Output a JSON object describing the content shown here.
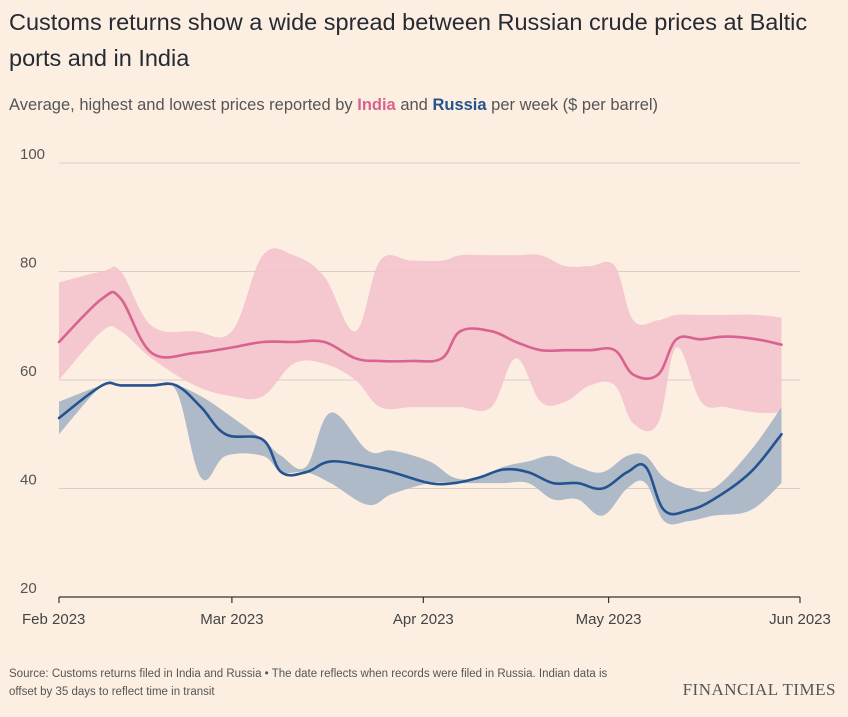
{
  "header": {
    "title": "Customs returns show a wide spread between Russian crude prices at Baltic ports and in India",
    "subtitle_prefix": "Average, highest and lowest prices reported by ",
    "subtitle_india": "India",
    "subtitle_and": " and ",
    "subtitle_russia": "Russia",
    "subtitle_suffix": " per week ($ per barrel)"
  },
  "footer": {
    "source": "Source: Customs returns filed in India and Russia • The date reflects when records were filed in Russia. Indian data is offset by 35 days to reflect time in transit",
    "brand": "FINANCIAL TIMES"
  },
  "colors": {
    "background": "#fcefe2",
    "india_line": "#d9638f",
    "india_band": "#f4c3cc",
    "russia_line": "#25538f",
    "russia_band": "#a8b5c7",
    "grid": "#d9cfc5"
  },
  "chart_data": {
    "type": "line",
    "title": "Customs returns show a wide spread between Russian crude prices at Baltic ports and in India",
    "ylabel": "$ per barrel",
    "ylim": [
      20,
      100
    ],
    "yticks": [
      20,
      40,
      60,
      80,
      100
    ],
    "xlim": [
      0,
      120
    ],
    "x_unit": "days since 1 Feb 2023",
    "xticks": [
      {
        "label": "Feb 2023",
        "value": 0
      },
      {
        "label": "Mar 2023",
        "value": 28
      },
      {
        "label": "Apr 2023",
        "value": 59
      },
      {
        "label": "May 2023",
        "value": 89
      },
      {
        "label": "Jun 2023",
        "value": 120
      }
    ],
    "series": [
      {
        "name": "India",
        "x": [
          0,
          7,
          10,
          15,
          22,
          28,
          33,
          38,
          43,
          48,
          52,
          57,
          62,
          65,
          70,
          74,
          78,
          82,
          86,
          90,
          93,
          97,
          100,
          104,
          108,
          113,
          117
        ],
        "avg": [
          67,
          75,
          75,
          65,
          65,
          66,
          67,
          67,
          67,
          64,
          63.5,
          63.5,
          64,
          69,
          69,
          67,
          65.5,
          65.5,
          65.5,
          65.5,
          61,
          61,
          67.5,
          67.5,
          68,
          67.5,
          66.5
        ],
        "high": [
          78,
          80,
          80,
          70,
          69,
          69,
          83,
          83,
          79,
          69,
          82,
          82,
          82,
          83,
          83,
          83,
          83,
          81,
          81,
          81,
          71,
          71,
          72,
          72,
          72,
          72,
          71.5
        ],
        "low": [
          60,
          69,
          69,
          64,
          59,
          57,
          57,
          63,
          63,
          60,
          55,
          55,
          55,
          55,
          55,
          64,
          56,
          56,
          59,
          59,
          52,
          52,
          66,
          56,
          55,
          54,
          54
        ]
      },
      {
        "name": "Russia",
        "x": [
          0,
          7,
          10,
          15,
          19,
          23,
          27,
          33,
          36,
          40,
          44,
          50,
          54,
          60,
          64,
          68,
          72,
          76,
          80,
          84,
          88,
          92,
          95,
          98,
          102,
          106,
          112,
          117
        ],
        "avg": [
          53,
          59,
          59,
          59,
          59,
          55,
          50,
          49,
          43,
          43,
          45,
          44,
          43,
          41,
          41,
          42,
          43.5,
          43,
          41,
          41,
          40,
          43,
          44,
          36,
          36,
          38,
          43,
          50
        ],
        "high": [
          56,
          59,
          59,
          59,
          59,
          57,
          54,
          49,
          46,
          44,
          54,
          47,
          47,
          45,
          42,
          42,
          44,
          45,
          46,
          44,
          43,
          46,
          46,
          42,
          40,
          40,
          47,
          55
        ],
        "low": [
          50,
          59,
          59,
          59,
          58,
          42,
          46,
          46,
          43,
          43,
          41,
          37,
          39,
          41,
          41,
          41,
          41,
          41,
          38,
          38,
          35,
          40,
          41,
          34,
          34,
          35,
          36,
          41
        ]
      }
    ]
  }
}
